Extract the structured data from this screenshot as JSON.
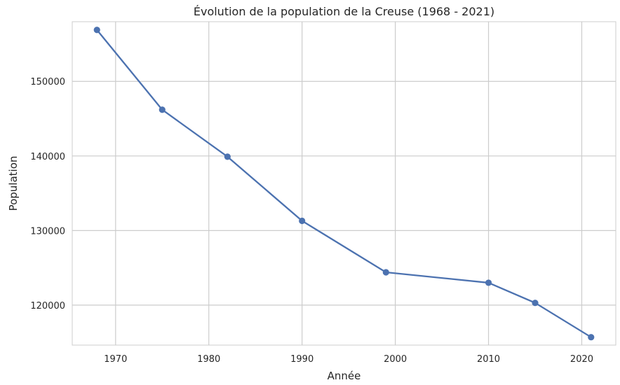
{
  "chart_data": {
    "type": "line",
    "title": "Évolution de la population de la Creuse (1968 - 2021)",
    "xlabel": "Année",
    "ylabel": "Population",
    "xlim": [
      1965.35,
      2023.65
    ],
    "ylim": [
      114640,
      158000
    ],
    "xticks": [
      1970,
      1980,
      1990,
      2000,
      2010,
      2020
    ],
    "yticks": [
      120000,
      130000,
      140000,
      150000
    ],
    "grid": true,
    "series": [
      {
        "name": "",
        "color": "#4c72b0",
        "marker": "circle",
        "points": [
          {
            "x": 1968,
            "y": 156900
          },
          {
            "x": 1975,
            "y": 146200
          },
          {
            "x": 1982,
            "y": 139900
          },
          {
            "x": 1990,
            "y": 131300
          },
          {
            "x": 1999,
            "y": 124400
          },
          {
            "x": 2010,
            "y": 123000
          },
          {
            "x": 2015,
            "y": 120300
          },
          {
            "x": 2021,
            "y": 115700
          }
        ]
      }
    ]
  }
}
